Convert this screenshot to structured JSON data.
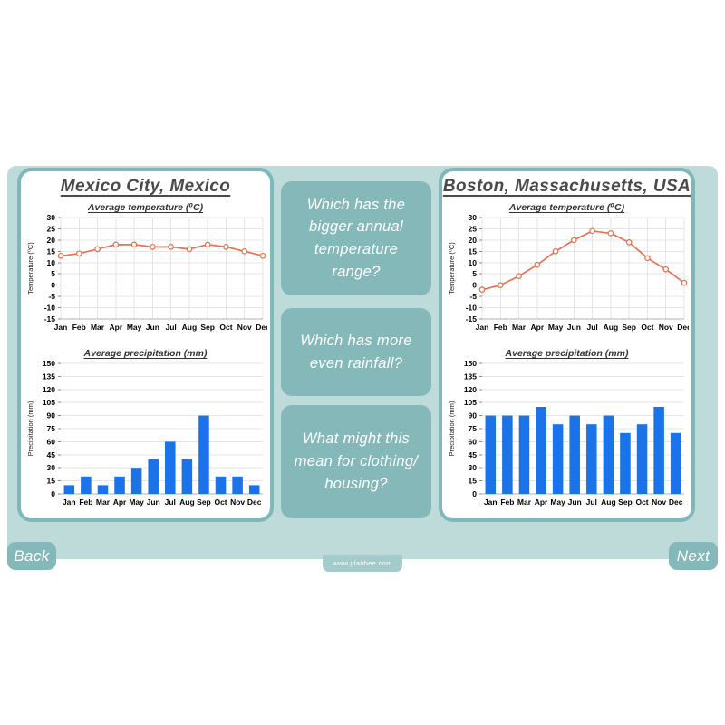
{
  "slide": {
    "back_label": "Back",
    "next_label": "Next",
    "site_url": "www.planbee.com"
  },
  "questions": [
    "Which has the bigger annual temperature range?",
    "Which has more even rainfall?",
    "What might this mean for clothing/ housing?"
  ],
  "panels": [
    {
      "title": "Mexico City, Mexico"
    },
    {
      "title": "Boston, Massachusetts, USA"
    }
  ],
  "colors": {
    "band": "#bedbda",
    "teal_box": "#85b8b9",
    "panel_border": "#7db9ba",
    "line": "#e57352",
    "bar": "#1a73e8",
    "grid": "#e4e4e4",
    "axis": "#b0b0b0"
  },
  "chart_data": [
    {
      "panel": "Mexico City, Mexico",
      "type": "line",
      "title": "Average temperature (⁰C)",
      "ylabel": "Temperature (⁰C)",
      "categories": [
        "Jan",
        "Feb",
        "Mar",
        "Apr",
        "May",
        "Jun",
        "Jul",
        "Aug",
        "Sep",
        "Oct",
        "Nov",
        "Dec"
      ],
      "values": [
        13,
        14,
        16,
        18,
        18,
        17,
        17,
        16,
        18,
        17,
        15,
        13
      ],
      "ylim": [
        -15,
        30
      ],
      "yticks": [
        30,
        25,
        20,
        15,
        10,
        5,
        0,
        -5,
        -10,
        -15
      ],
      "grid": true,
      "line_color": "#e57352",
      "marker": "open-circle"
    },
    {
      "panel": "Mexico City, Mexico",
      "type": "bar",
      "title": "Average precipitation (mm)",
      "ylabel": "Precipitation (mm)",
      "categories": [
        "Jan",
        "Feb",
        "Mar",
        "Apr",
        "May",
        "Jun",
        "Jul",
        "Aug",
        "Sep",
        "Oct",
        "Nov",
        "Dec"
      ],
      "values": [
        10,
        20,
        10,
        20,
        30,
        40,
        60,
        40,
        90,
        20,
        20,
        10
      ],
      "ylim": [
        0,
        150
      ],
      "yticks": [
        150,
        135,
        120,
        105,
        90,
        75,
        60,
        45,
        30,
        15,
        0
      ],
      "grid": true,
      "bar_color": "#1a73e8"
    },
    {
      "panel": "Boston, Massachusetts, USA",
      "type": "line",
      "title": "Average temperature (⁰C)",
      "ylabel": "Temperature (⁰C)",
      "categories": [
        "Jan",
        "Feb",
        "Mar",
        "Apr",
        "May",
        "Jun",
        "Jul",
        "Aug",
        "Sep",
        "Oct",
        "Nov",
        "Dec"
      ],
      "values": [
        -2,
        0,
        4,
        9,
        15,
        20,
        24,
        23,
        19,
        12,
        7,
        1
      ],
      "ylim": [
        -15,
        30
      ],
      "yticks": [
        30,
        25,
        20,
        15,
        10,
        5,
        0,
        -5,
        -10,
        -15
      ],
      "grid": true,
      "line_color": "#e57352",
      "marker": "open-circle"
    },
    {
      "panel": "Boston, Massachusetts, USA",
      "type": "bar",
      "title": "Average precipitation (mm)",
      "ylabel": "Precipitation (mm)",
      "categories": [
        "Jan",
        "Feb",
        "Mar",
        "Apr",
        "May",
        "Jun",
        "Jul",
        "Aug",
        "Sep",
        "Oct",
        "Nov",
        "Dec"
      ],
      "values": [
        90,
        90,
        90,
        100,
        80,
        90,
        80,
        90,
        70,
        80,
        100,
        70
      ],
      "ylim": [
        0,
        150
      ],
      "yticks": [
        150,
        135,
        120,
        105,
        90,
        75,
        60,
        45,
        30,
        15,
        0
      ],
      "grid": true,
      "bar_color": "#1a73e8"
    }
  ]
}
